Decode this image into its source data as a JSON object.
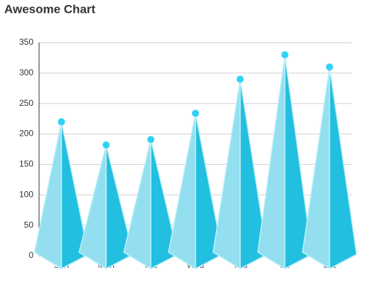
{
  "chart_data": {
    "type": "pyramid",
    "title": "Awesome Chart",
    "categories": [
      "Sun",
      "Mon",
      "Tue",
      "Wed",
      "Thu",
      "Fri",
      "Sat"
    ],
    "values": [
      220,
      182,
      191,
      234,
      290,
      330,
      310
    ],
    "colors": {
      "left": "#93dff0",
      "right": "#22bfe0",
      "dot": "#2fd3f5"
    },
    "ylim": [
      0,
      350
    ],
    "yticks": [
      0,
      50,
      100,
      150,
      200,
      250,
      300,
      350
    ],
    "grid": true
  }
}
